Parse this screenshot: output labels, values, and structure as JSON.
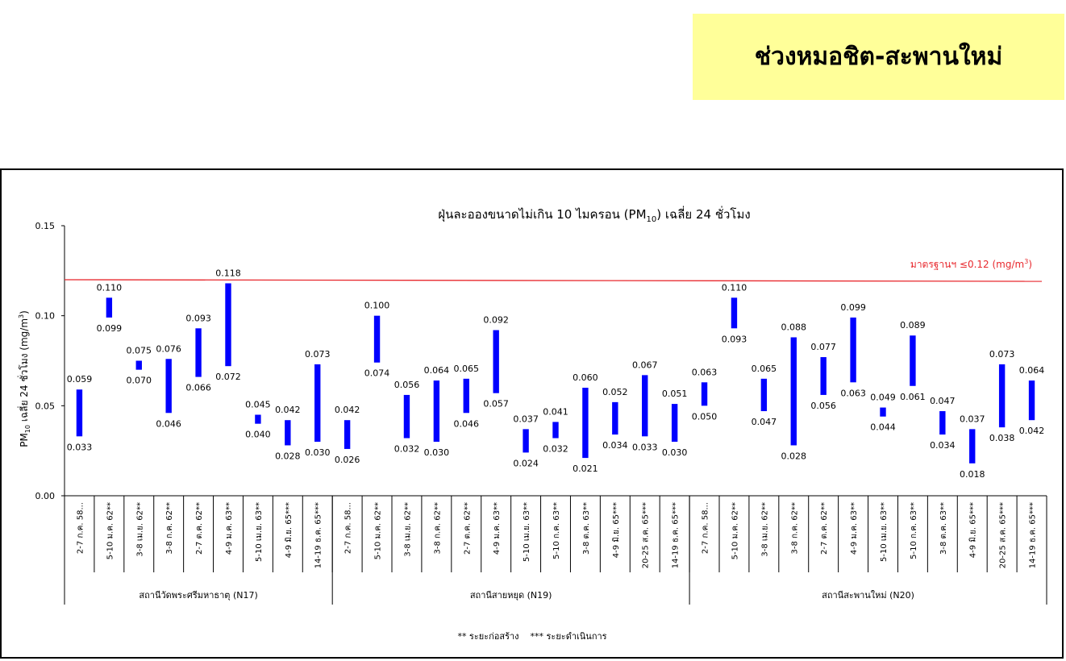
{
  "header": {
    "section_title": "ช่วงหมอชิต-สะพานใหม่"
  },
  "chart_data": {
    "type": "bar",
    "subtype": "floating-range",
    "title": "ฝุ่นละอองขนาดไม่เกิน 10 ไมครอน (PM10) เฉลี่ย 24 ชั่วโมง",
    "title_parts": {
      "pre": "ฝุ่นละอองขนาดไม่เกิน 10 ไมครอน (PM",
      "sub": "10",
      "post": ") เฉลี่ย 24 ชั่วโมง"
    },
    "ylabel": "PM10 เฉลี่ย 24 ชั่วโมง (mg/m3)",
    "ylabel_parts": {
      "pre": "PM",
      "sub": "10",
      "mid": " เฉลี่ย 24 ชั่วโมง (mg/m",
      "sup": "3",
      "post": ")"
    },
    "ylim": [
      0,
      0.15
    ],
    "yticks": [
      "0.00",
      "0.05",
      "0.10",
      "0.15"
    ],
    "grid": false,
    "bar_color": "#0000ff",
    "standard": {
      "label": "มาตรฐานฯ ≤0.12 (mg/m3)",
      "label_parts": {
        "pre": "มาตรฐานฯ ≤0.12 (mg/m",
        "sup": "3",
        "post": ")"
      },
      "value": 0.12,
      "color": "#e8282d"
    },
    "footnote": "** ระยะก่อสร้าง    *** ระยะดำเนินการ",
    "groups": [
      {
        "name": "สถานีวัดพระศรีมหาธาตุ (N17)",
        "categories": [
          "2-7 ก.ค. 58...",
          "5-10 ม.ค. 62**",
          "3-8 เม.ย. 62**",
          "3-8 ก.ค. 62**",
          "2-7 ต.ค. 62**",
          "4-9 ม.ค. 63**",
          "5-10 เม.ย. 63**",
          "4-9 มิ.ย. 65***",
          "14-19 ธ.ค. 65***"
        ],
        "max": [
          "0.059",
          "0.110",
          "0.075",
          "0.076",
          "0.093",
          "0.118",
          "0.045",
          "0.042",
          "0.073"
        ],
        "min": [
          "0.033",
          "0.099",
          "0.070",
          "0.046",
          "0.066",
          "0.072",
          "0.040",
          "0.028",
          "0.030"
        ]
      },
      {
        "name": "สถานีสายหยุด (N19)",
        "categories": [
          "2-7 ก.ค. 58...",
          "5-10 ม.ค. 62**",
          "3-8 เม.ย. 62**",
          "3-8 ก.ค. 62**",
          "2-7 ต.ค. 62**",
          "4-9 ม.ค. 63**",
          "5-10 เม.ย. 63**",
          "5-10 ก.ค. 63**",
          "3-8 ต.ค. 63**",
          "4-9 มิ.ย. 65***",
          "20-25 ส.ค. 65***",
          "14-19 ธ.ค. 65***"
        ],
        "max": [
          "0.042",
          "0.100",
          "0.056",
          "0.064",
          "0.065",
          "0.092",
          "0.037",
          "0.041",
          "0.060",
          "0.052",
          "0.067",
          "0.051"
        ],
        "min": [
          "0.026",
          "0.074",
          "0.032",
          "0.030",
          "0.046",
          "0.057",
          "0.024",
          "0.032",
          "0.021",
          "0.034",
          "0.033",
          "0.030"
        ]
      },
      {
        "name": "สถานีสะพานใหม่ (N20)",
        "categories": [
          "2-7 ก.ค. 58...",
          "5-10 ม.ค. 62**",
          "3-8 เม.ย. 62**",
          "3-8 ก.ค. 62**",
          "2-7 ต.ค. 62**",
          "4-9 ม.ค. 63**",
          "5-10 เม.ย. 63**",
          "5-10 ก.ค. 63**",
          "3-8 ต.ค. 63**",
          "4-9 มิ.ย. 65***",
          "20-25 ส.ค. 65***",
          "14-19 ธ.ค. 65***"
        ],
        "max": [
          "0.063",
          "0.110",
          "0.065",
          "0.088",
          "0.077",
          "0.099",
          "0.049",
          "0.089",
          "0.047",
          "0.037",
          "0.073",
          "0.064"
        ],
        "min": [
          "0.050",
          "0.093",
          "0.047",
          "0.028",
          "0.056",
          "0.063",
          "0.044",
          "0.061",
          "0.034",
          "0.018",
          "0.038",
          "0.042"
        ]
      }
    ]
  }
}
